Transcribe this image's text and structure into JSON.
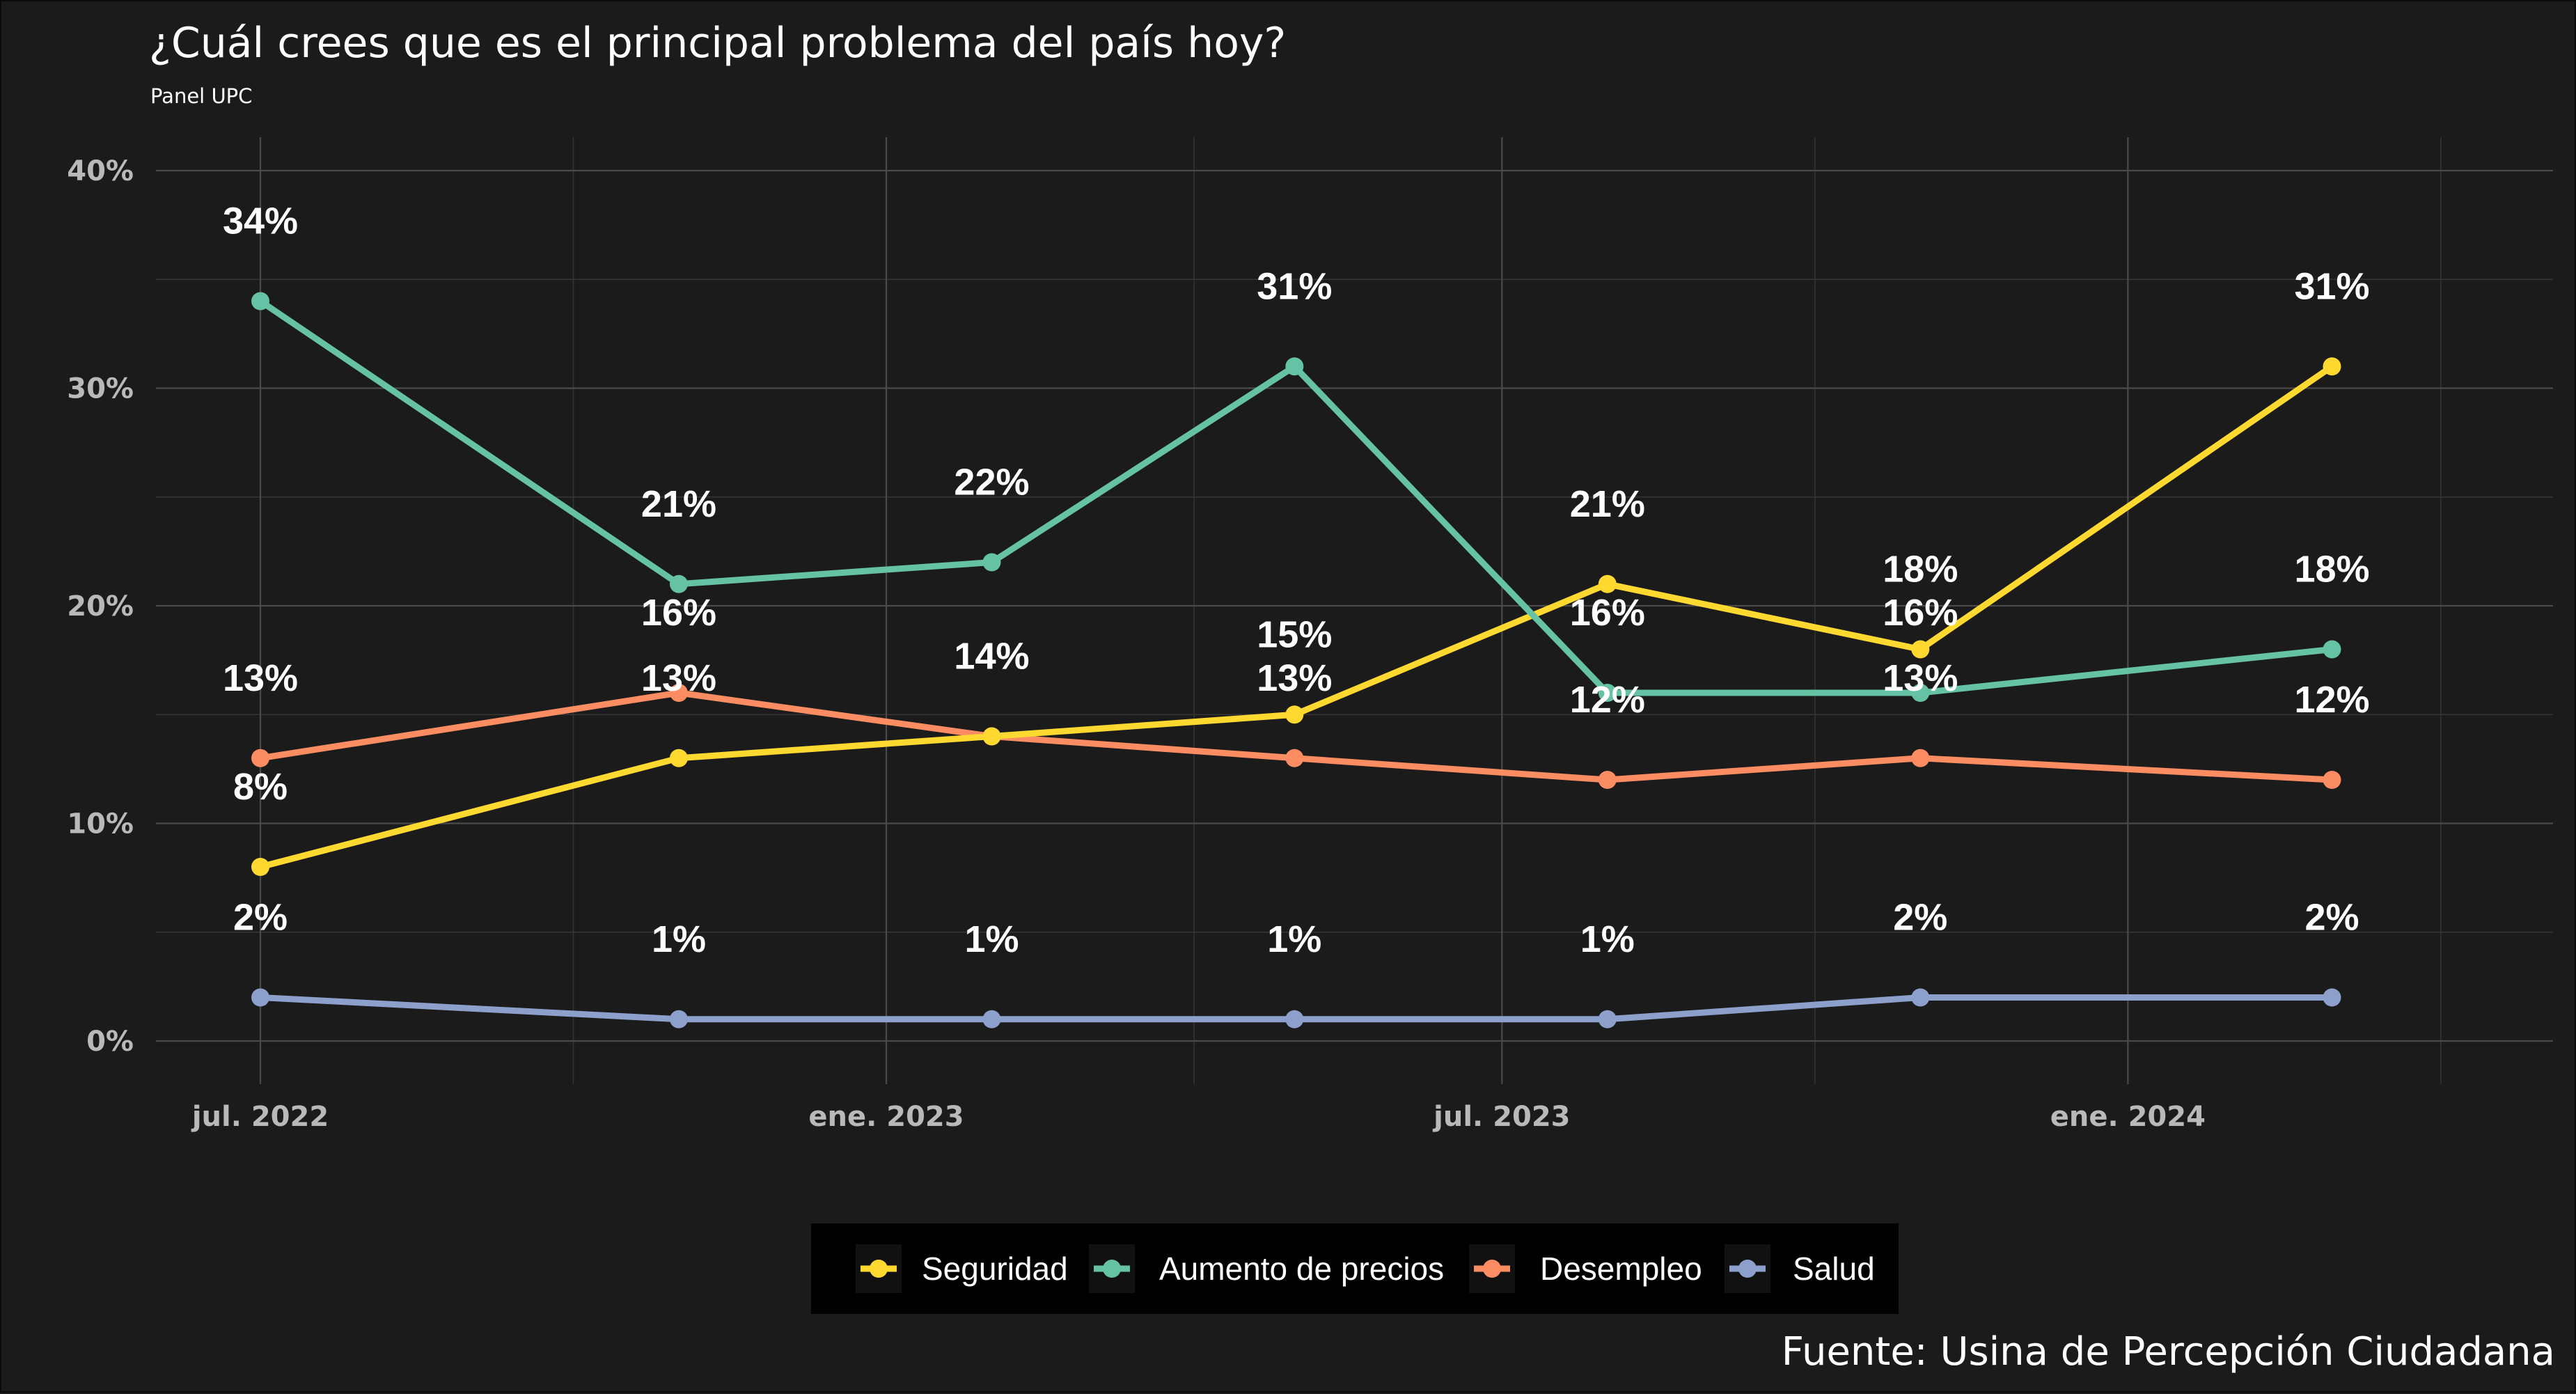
{
  "chart_data": {
    "type": "line",
    "title": "¿Cuál crees que es el principal problema del país hoy?",
    "subtitle": "Panel UPC",
    "caption": "Fuente: Usina de Percepción Ciudadana",
    "xlabel": "",
    "ylabel": "",
    "x": [
      "2022-07",
      "2022-11",
      "2023-02",
      "2023-05",
      "2023-08",
      "2023-11",
      "2024-03"
    ],
    "x_ticks": [
      {
        "date": "2022-07",
        "label": "jul. 2022"
      },
      {
        "date": "2023-01",
        "label": "ene. 2023"
      },
      {
        "date": "2023-07",
        "label": "jul. 2023"
      },
      {
        "date": "2024-01",
        "label": "ene. 2024"
      }
    ],
    "y_ticks": [
      {
        "value": 0,
        "label": "0%"
      },
      {
        "value": 10,
        "label": "10%"
      },
      {
        "value": 20,
        "label": "20%"
      },
      {
        "value": 30,
        "label": "30%"
      },
      {
        "value": 40,
        "label": "40%"
      }
    ],
    "ylim": [
      0,
      40
    ],
    "grid": true,
    "legend_position": "bottom",
    "series": [
      {
        "name": "Seguridad",
        "color": "#ffd92f",
        "values": [
          8,
          13,
          14,
          15,
          21,
          18,
          31
        ]
      },
      {
        "name": "Aumento de precios",
        "color": "#66c2a5",
        "values": [
          34,
          21,
          22,
          31,
          16,
          16,
          18
        ]
      },
      {
        "name": "Desempleo",
        "color": "#fc8d62",
        "values": [
          13,
          16,
          14,
          13,
          12,
          13,
          12
        ]
      },
      {
        "name": "Salud",
        "color": "#8da0cb",
        "values": [
          2,
          1,
          1,
          1,
          1,
          2,
          2
        ]
      }
    ],
    "data_labels": [
      {
        "series": "Seguridad",
        "text": [
          "8%",
          "13%",
          "14%",
          "15%",
          "21%",
          "18%",
          "31%"
        ]
      },
      {
        "series": "Aumento de precios",
        "text": [
          "34%",
          "21%",
          "22%",
          "31%",
          "16%",
          "16%",
          "18%"
        ]
      },
      {
        "series": "Desempleo",
        "text": [
          "13%",
          "16%",
          "14%",
          "13%",
          "12%",
          "13%",
          "12%"
        ]
      },
      {
        "series": "Salud",
        "text": [
          "2%",
          "1%",
          "1%",
          "1%",
          "1%",
          "2%",
          "2%"
        ]
      }
    ]
  }
}
